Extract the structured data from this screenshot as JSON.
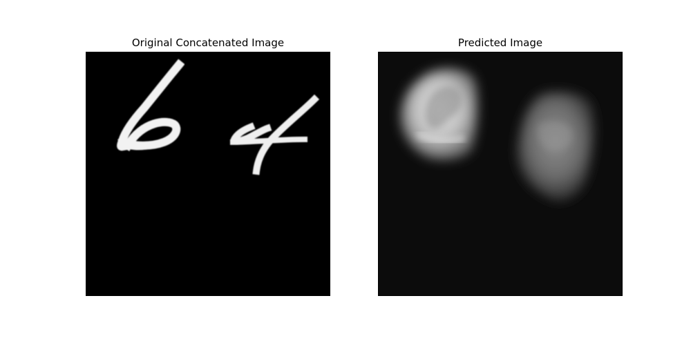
{
  "figure": {
    "panels": [
      {
        "title": "Original Concatenated Image"
      },
      {
        "title": "Predicted Image"
      }
    ]
  }
}
